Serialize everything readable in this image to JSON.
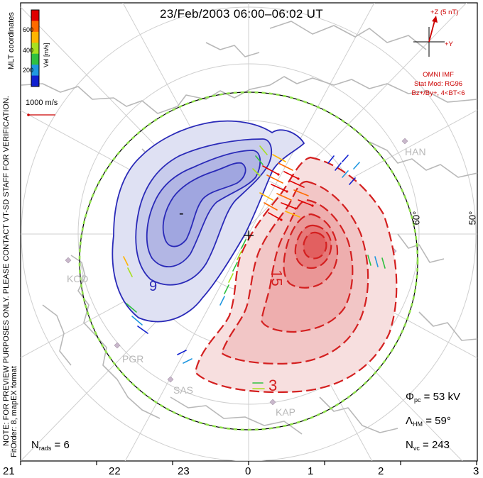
{
  "title": "23/Feb/2003  06:00–06:02  UT",
  "colors": {
    "negative_cell": "#2a2ab8",
    "positive_cell": "#d42020",
    "boundary_dash": "#8ee04a",
    "coast": "#b8b8b8",
    "grid": "#cfcfcf"
  },
  "chart_data": {
    "type": "polar-map",
    "colorbar": {
      "label": "Vel [m/s]",
      "ticks": [
        "600",
        "400",
        "200"
      ],
      "bands": [
        "#e00000",
        "#ff6a00",
        "#ffb400",
        "#a8e020",
        "#30c040",
        "#2098e0",
        "#1020d0"
      ]
    },
    "mlt_label": "MLT coordinates",
    "vector_scale": "1000 m/s",
    "imf": {
      "plus_z": "+Z (5 nT)",
      "plus_y": "+Y",
      "source": "OMNI IMF",
      "model": "Stat Mod: RG96",
      "model_params": "Bz+/By+, 4<BT<6"
    },
    "notes": [
      "NOTE: FOR PREVIEW PURPOSES ONLY. PLEASE CONTACT VT-SD STAFF FOR VERIFICATION.",
      "FitOrder: 8, mapEX format"
    ],
    "latitude_labels": [
      "60°",
      "50°"
    ],
    "mlt_ticks": [
      "21",
      "22",
      "23",
      "0",
      "1",
      "2",
      "3"
    ],
    "stations": [
      "KOD",
      "PGR",
      "SAS",
      "KAP",
      "HAN"
    ],
    "contour_labels": [
      "-",
      "9",
      "15",
      "3",
      "+"
    ],
    "stats": {
      "phi_pc": "53 kV",
      "lambda_hm": "59°",
      "n_vc": "243",
      "n_rads": "6"
    }
  }
}
